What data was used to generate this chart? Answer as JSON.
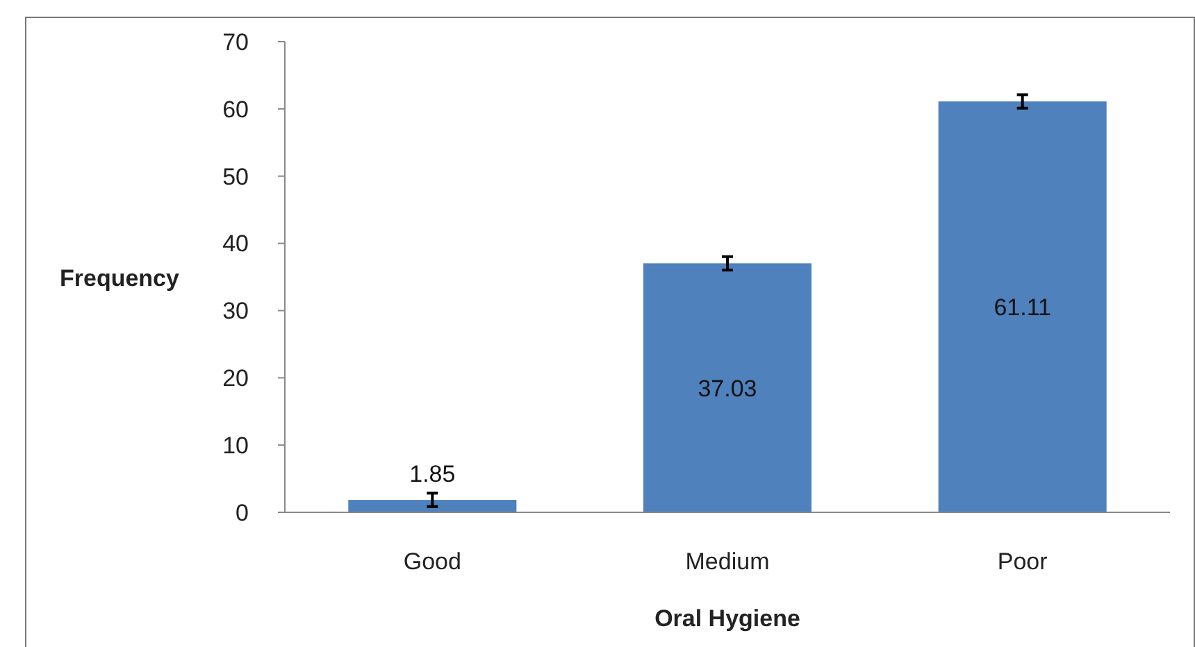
{
  "chart_data": {
    "type": "bar",
    "categories": [
      "Good",
      "Medium",
      "Poor"
    ],
    "values": [
      1.85,
      37.03,
      61.11
    ],
    "color": "#4f81bd",
    "errors": [
      1,
      1,
      1
    ],
    "ylim": [
      0,
      70
    ],
    "yticks": [
      0,
      10,
      20,
      30,
      40,
      50,
      60,
      70
    ],
    "xlabel": "Oral Hygiene",
    "ylabel": "Frequency",
    "data_labels": true,
    "grid": false
  }
}
